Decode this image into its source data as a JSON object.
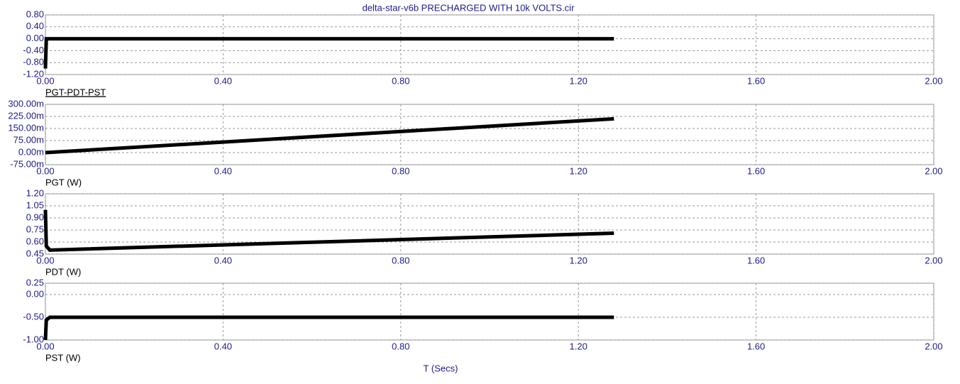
{
  "chart_data": [
    {
      "type": "line",
      "title": "delta-star-v6b PRECHARGED WITH 10k VOLTS.cir",
      "x": [
        0,
        0.002,
        1.28
      ],
      "series": [
        {
          "name": "PGT-PDT-PST",
          "color": "#000000",
          "values": [
            -1.0,
            0,
            0
          ]
        }
      ],
      "xlim": [
        0,
        2
      ],
      "xticks": [
        {
          "value": 0,
          "label": "0.00"
        },
        {
          "value": 0.4,
          "label": "0.40"
        },
        {
          "value": 0.8,
          "label": "0.80"
        },
        {
          "value": 1.2,
          "label": "1.20"
        },
        {
          "value": 1.6,
          "label": "1.60"
        },
        {
          "value": 2,
          "label": "2.00"
        }
      ],
      "ylim": [
        -1.2,
        0.8
      ],
      "yticks": [
        {
          "value": 0.8,
          "label": "0.80"
        },
        {
          "value": 0.4,
          "label": "0.40"
        },
        {
          "value": 0,
          "label": "0.00"
        },
        {
          "value": -0.4,
          "label": "-0.40"
        },
        {
          "value": -0.8,
          "label": "-0.80"
        },
        {
          "value": -1.2,
          "label": "-1.20"
        }
      ],
      "grid": true
    },
    {
      "type": "line",
      "x": [
        0,
        1.28
      ],
      "series": [
        {
          "name": "PGT (W)",
          "color": "#000000",
          "values": [
            0,
            0.21
          ]
        }
      ],
      "xlim": [
        0,
        2
      ],
      "xticks": [
        {
          "value": 0,
          "label": "0.00"
        },
        {
          "value": 0.4,
          "label": "0.40"
        },
        {
          "value": 0.8,
          "label": "0.80"
        },
        {
          "value": 1.2,
          "label": "1.20"
        },
        {
          "value": 1.6,
          "label": "1.60"
        },
        {
          "value": 2,
          "label": "2.00"
        }
      ],
      "ylim": [
        -0.075,
        0.3
      ],
      "yticks": [
        {
          "value": 0.3,
          "label": "300.00m"
        },
        {
          "value": 0.225,
          "label": "225.00m"
        },
        {
          "value": 0.15,
          "label": "150.00m"
        },
        {
          "value": 0.075,
          "label": "75.00m"
        },
        {
          "value": 0,
          "label": "0.00m"
        },
        {
          "value": -0.075,
          "label": "-75.00m"
        }
      ],
      "grid": true
    },
    {
      "type": "line",
      "x": [
        0,
        0.002,
        0.01,
        1.28
      ],
      "series": [
        {
          "name": "PDT (W)",
          "color": "#000000",
          "values": [
            1.0,
            0.55,
            0.5,
            0.71
          ]
        }
      ],
      "xlim": [
        0,
        2
      ],
      "xticks": [
        {
          "value": 0,
          "label": "0.00"
        },
        {
          "value": 0.4,
          "label": "0.40"
        },
        {
          "value": 0.8,
          "label": "0.80"
        },
        {
          "value": 1.2,
          "label": "1.20"
        },
        {
          "value": 1.6,
          "label": "1.60"
        },
        {
          "value": 2,
          "label": "2.00"
        }
      ],
      "ylim": [
        0.45,
        1.2
      ],
      "yticks": [
        {
          "value": 1.2,
          "label": "1.20"
        },
        {
          "value": 1.05,
          "label": "1.05"
        },
        {
          "value": 0.9,
          "label": "0.90"
        },
        {
          "value": 0.75,
          "label": "0.75"
        },
        {
          "value": 0.6,
          "label": "0.60"
        },
        {
          "value": 0.45,
          "label": "0.45"
        }
      ],
      "grid": true
    },
    {
      "type": "line",
      "xlabel": "T (Secs)",
      "x": [
        0,
        0.002,
        0.01,
        1.28
      ],
      "series": [
        {
          "name": "PST (W)",
          "color": "#000000",
          "values": [
            -1.0,
            -0.56,
            -0.5,
            -0.5
          ]
        }
      ],
      "xlim": [
        0,
        2
      ],
      "xticks": [
        {
          "value": 0,
          "label": "0.00"
        },
        {
          "value": 0.4,
          "label": "0.40"
        },
        {
          "value": 0.8,
          "label": "0.80"
        },
        {
          "value": 1.2,
          "label": "1.20"
        },
        {
          "value": 1.6,
          "label": "1.60"
        },
        {
          "value": 2,
          "label": "2.00"
        }
      ],
      "ylim": [
        -1.0,
        0.25
      ],
      "yticks": [
        {
          "value": 0.25,
          "label": "0.25"
        },
        {
          "value": 0,
          "label": "0.00"
        },
        {
          "value": -0.5,
          "label": "-0.50"
        },
        {
          "value": -1.0,
          "label": "-1.00"
        }
      ],
      "grid": true
    }
  ]
}
